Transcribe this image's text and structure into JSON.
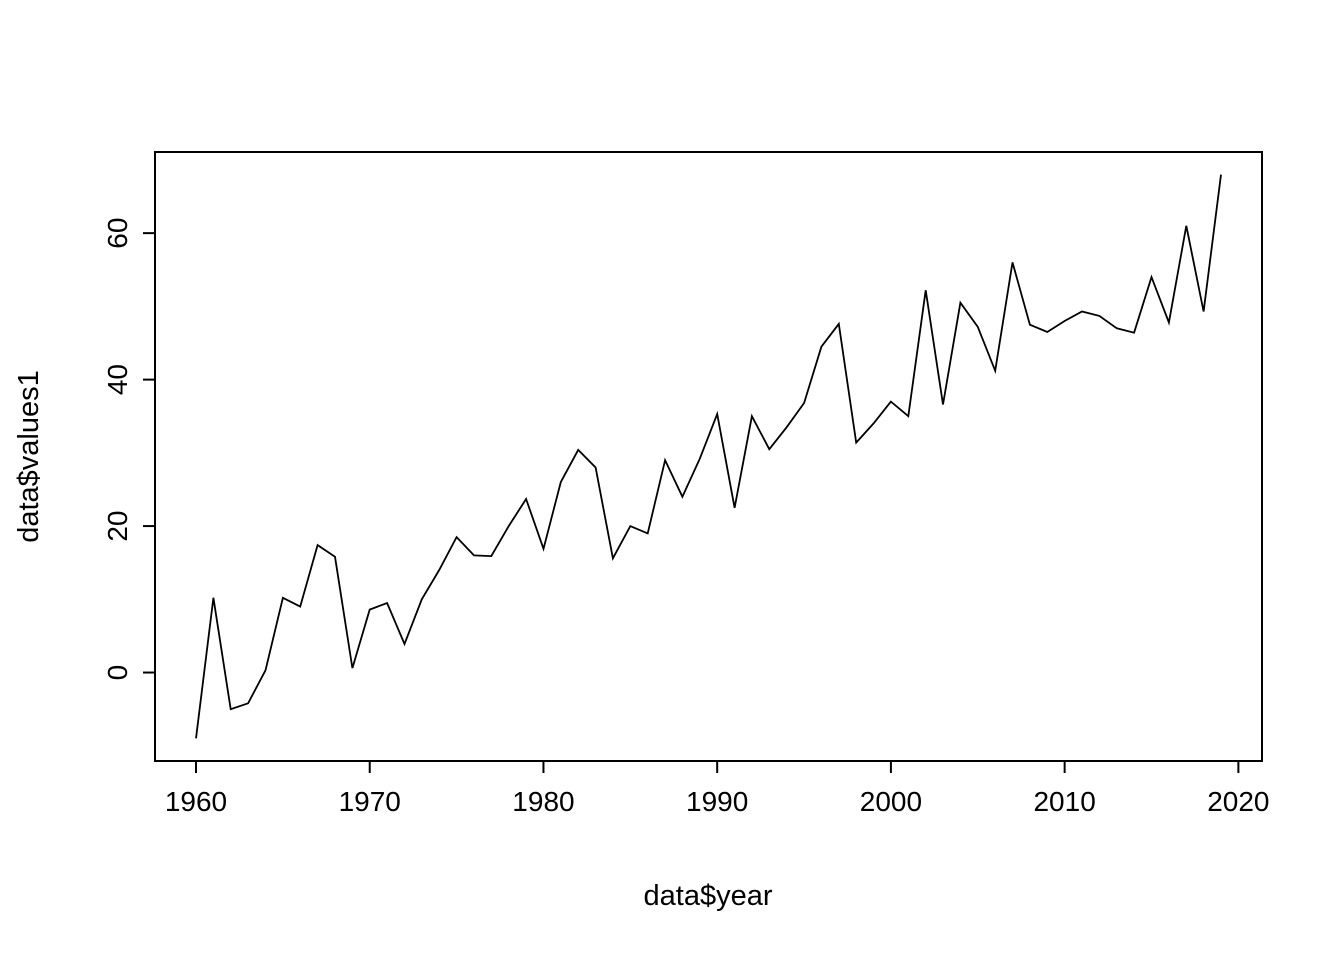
{
  "chart_data": {
    "type": "line",
    "title": "",
    "xlabel": "data$year",
    "ylabel": "data$values1",
    "x": [
      1960,
      1961,
      1962,
      1963,
      1964,
      1965,
      1966,
      1967,
      1968,
      1969,
      1970,
      1971,
      1972,
      1973,
      1974,
      1975,
      1976,
      1977,
      1978,
      1979,
      1980,
      1981,
      1982,
      1983,
      1984,
      1985,
      1986,
      1987,
      1988,
      1989,
      1990,
      1991,
      1992,
      1993,
      1994,
      1995,
      1996,
      1997,
      1998,
      1999,
      2000,
      2001,
      2002,
      2003,
      2004,
      2005,
      2006,
      2007,
      2008,
      2009,
      2010,
      2011,
      2012,
      2013,
      2014,
      2015,
      2016,
      2017,
      2018,
      2019
    ],
    "series": [
      {
        "name": "data$values1",
        "values": [
          -9,
          10.2,
          -5,
          -4.2,
          0.3,
          10.2,
          9,
          17.4,
          15.8,
          0.6,
          8.6,
          9.5,
          3.9,
          10,
          14,
          18.5,
          16,
          15.9,
          20,
          23.7,
          16.9,
          26,
          30.4,
          28,
          15.6,
          20,
          19,
          29,
          24,
          29.2,
          35.3,
          22.5,
          35,
          30.5,
          33.5,
          36.8,
          44.5,
          47.6,
          31.4,
          34,
          37,
          35,
          52.2,
          36.6,
          50.5,
          47.2,
          41.2,
          56,
          47.5,
          46.5,
          48,
          49.3,
          48.7,
          47,
          46.4,
          54,
          47.8,
          61,
          49.3,
          68
        ]
      }
    ],
    "xlim": [
      1960,
      2019
    ],
    "ylim": [
      -9,
      68
    ],
    "xticks": [
      1960,
      1970,
      1980,
      1990,
      2000,
      2010,
      2020
    ],
    "yticks": [
      0,
      20,
      40,
      60
    ],
    "grid": "off",
    "legend": "none",
    "line_color": "#000000",
    "box_color": "#000000"
  }
}
